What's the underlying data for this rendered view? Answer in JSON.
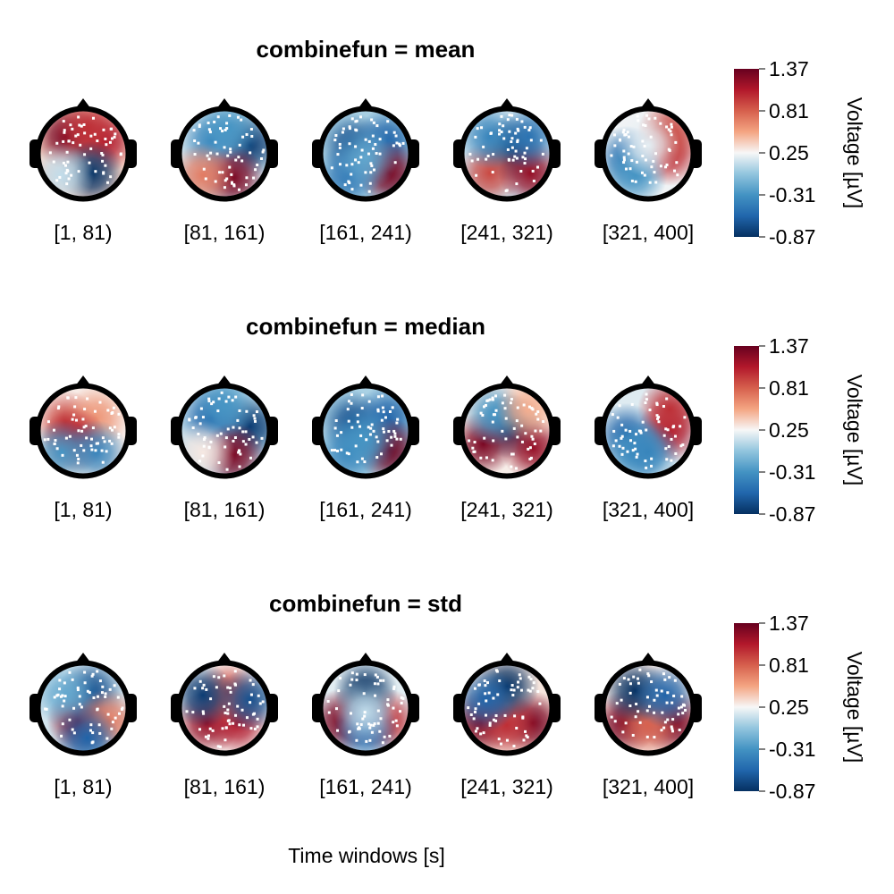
{
  "chart_data": {
    "type": "heatmap",
    "subtype": "topoplot-series",
    "xlabel": "Time windows [s]",
    "colorbar": {
      "label": "Voltage [µV]",
      "range": [
        -0.87,
        1.37
      ],
      "ticks": [
        "1.37",
        "0.81",
        "0.25",
        "-0.31",
        "-0.87"
      ],
      "colormap": "RdBu reversed",
      "colors": [
        "#053061",
        "#2166ac",
        "#4393c3",
        "#92c5de",
        "#f7f7f7",
        "#f4a582",
        "#d6604d",
        "#b2182b",
        "#67001f"
      ]
    },
    "windows": [
      "[1, 81)",
      "[81, 161)",
      "[161, 241)",
      "[241, 321)",
      "[321, 400]"
    ],
    "rows": [
      {
        "title": "combinefun = mean",
        "topos": [
          [
            {
              "x": -0.4,
              "y": -0.4,
              "v": 1.3
            },
            {
              "x": 0.5,
              "y": -0.3,
              "v": 1.1
            },
            {
              "x": 0.1,
              "y": -0.6,
              "v": 1.0
            },
            {
              "x": 0.2,
              "y": 0.45,
              "v": -0.85
            },
            {
              "x": -0.5,
              "y": 0.5,
              "v": 0.1
            }
          ],
          [
            {
              "x": 0.6,
              "y": -0.2,
              "v": -0.8
            },
            {
              "x": -0.3,
              "y": -0.3,
              "v": -0.4
            },
            {
              "x": 0.2,
              "y": 0.55,
              "v": 1.3
            },
            {
              "x": -0.5,
              "y": 0.5,
              "v": 0.7
            },
            {
              "x": 0.1,
              "y": -0.6,
              "v": -0.3
            }
          ],
          [
            {
              "x": -0.3,
              "y": -0.2,
              "v": -0.7
            },
            {
              "x": 0.5,
              "y": -0.3,
              "v": -0.6
            },
            {
              "x": 0.55,
              "y": 0.45,
              "v": 1.3
            },
            {
              "x": -0.4,
              "y": 0.5,
              "v": -0.5
            },
            {
              "x": 0,
              "y": 0.1,
              "v": -0.2
            }
          ],
          [
            {
              "x": 0.1,
              "y": -0.1,
              "v": -0.85
            },
            {
              "x": -0.4,
              "y": 0.45,
              "v": 0.9
            },
            {
              "x": 0.55,
              "y": 0.45,
              "v": 1.2
            },
            {
              "x": -0.4,
              "y": -0.4,
              "v": -0.4
            },
            {
              "x": 0.5,
              "y": -0.4,
              "v": -0.5
            }
          ],
          [
            {
              "x": 0.5,
              "y": 0,
              "v": 1.0
            },
            {
              "x": 0.5,
              "y": -0.5,
              "v": 0.9
            },
            {
              "x": -0.5,
              "y": 0.1,
              "v": -0.5
            },
            {
              "x": -0.3,
              "y": 0.5,
              "v": -0.3
            },
            {
              "x": 0,
              "y": -0.2,
              "v": 0.2
            }
          ]
        ]
      },
      {
        "title": "combinefun = median",
        "topos": [
          [
            {
              "x": -0.4,
              "y": -0.2,
              "v": 0.9
            },
            {
              "x": 0.3,
              "y": -0.3,
              "v": 0.6
            },
            {
              "x": -0.2,
              "y": 0.2,
              "v": 1.1
            },
            {
              "x": 0.3,
              "y": 0.5,
              "v": -0.4
            },
            {
              "x": -0.5,
              "y": 0.5,
              "v": -0.3
            }
          ],
          [
            {
              "x": 0.6,
              "y": -0.1,
              "v": -0.8
            },
            {
              "x": -0.3,
              "y": -0.3,
              "v": -0.6
            },
            {
              "x": 0.2,
              "y": 0.55,
              "v": 1.3
            },
            {
              "x": -0.5,
              "y": 0.5,
              "v": 0.3
            },
            {
              "x": 0,
              "y": -0.6,
              "v": -0.3
            }
          ],
          [
            {
              "x": -0.3,
              "y": -0.2,
              "v": -0.7
            },
            {
              "x": 0.5,
              "y": -0.3,
              "v": -0.6
            },
            {
              "x": 0.55,
              "y": 0.45,
              "v": 1.35
            },
            {
              "x": -0.4,
              "y": 0.5,
              "v": -0.4
            },
            {
              "x": 0,
              "y": 0.2,
              "v": -0.3
            }
          ],
          [
            {
              "x": 0.1,
              "y": -0.1,
              "v": -0.85
            },
            {
              "x": -0.55,
              "y": 0.3,
              "v": 1.3
            },
            {
              "x": 0.6,
              "y": 0.4,
              "v": 1.2
            },
            {
              "x": -0.3,
              "y": -0.4,
              "v": -0.3
            },
            {
              "x": 0.5,
              "y": -0.5,
              "v": 0.5
            }
          ],
          [
            {
              "x": 0.5,
              "y": 0,
              "v": 1.1
            },
            {
              "x": 0.5,
              "y": -0.5,
              "v": 1.0
            },
            {
              "x": -0.5,
              "y": 0.1,
              "v": -0.6
            },
            {
              "x": -0.3,
              "y": 0.5,
              "v": -0.3
            },
            {
              "x": 0,
              "y": 0.5,
              "v": -0.4
            }
          ]
        ]
      },
      {
        "title": "combinefun = std",
        "topos": [
          [
            {
              "x": -0.1,
              "y": 0.3,
              "v": 1.3
            },
            {
              "x": 0.2,
              "y": -0.4,
              "v": -0.7
            },
            {
              "x": -0.4,
              "y": -0.3,
              "v": -0.2
            },
            {
              "x": 0.6,
              "y": 0.3,
              "v": 0.7
            },
            {
              "x": 0.1,
              "y": 0.7,
              "v": -0.6
            }
          ],
          [
            {
              "x": -0.4,
              "y": 0.35,
              "v": 1.2
            },
            {
              "x": 0.3,
              "y": 0.35,
              "v": 1.1
            },
            {
              "x": 0.1,
              "y": -0.35,
              "v": 0.9
            },
            {
              "x": -0.5,
              "y": -0.3,
              "v": -0.8
            },
            {
              "x": 0.6,
              "y": -0.2,
              "v": -0.7
            }
          ],
          [
            {
              "x": -0.55,
              "y": 0.3,
              "v": 1.3
            },
            {
              "x": 0.5,
              "y": 0.3,
              "v": 1.0
            },
            {
              "x": 0,
              "y": -0.4,
              "v": -0.87
            },
            {
              "x": 0,
              "y": 0.5,
              "v": -0.6
            },
            {
              "x": 0,
              "y": 0.1,
              "v": 0.1
            }
          ],
          [
            {
              "x": -0.6,
              "y": 0.35,
              "v": 1.3
            },
            {
              "x": 0.6,
              "y": 0.35,
              "v": 1.3
            },
            {
              "x": 0,
              "y": 0.4,
              "v": 1.0
            },
            {
              "x": 0,
              "y": -0.5,
              "v": -0.87
            },
            {
              "x": -0.5,
              "y": -0.2,
              "v": -0.6
            }
          ],
          [
            {
              "x": -0.55,
              "y": 0.35,
              "v": 1.3
            },
            {
              "x": 0.6,
              "y": 0.35,
              "v": 1.3
            },
            {
              "x": 0,
              "y": 0.4,
              "v": 0.8
            },
            {
              "x": -0.3,
              "y": -0.4,
              "v": -0.87
            },
            {
              "x": 0.4,
              "y": -0.3,
              "v": -0.6
            }
          ]
        ]
      }
    ]
  }
}
